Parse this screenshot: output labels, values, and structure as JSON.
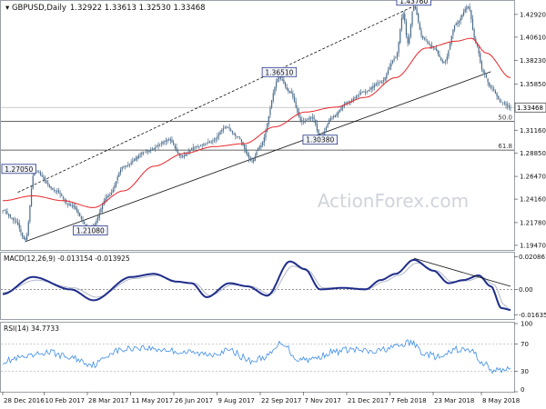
{
  "header": {
    "symbol": "GBPUSD,Daily",
    "ohlc": "1.32922 1.33613 1.32530 1.33468"
  },
  "watermark": "ActionForex.com",
  "colors": {
    "candle": "#4a6b8a",
    "sma": "#e8262a",
    "macd": "#1f2d8a",
    "signal": "#b0b8c8",
    "rsi": "#3f8ee8",
    "label_border": "#2a3a8a",
    "label_bg": "#f2f4fb",
    "level_line": "#333333"
  },
  "chart_data": [
    {
      "type": "candlestick",
      "title": "GBPUSD,Daily 1.32922 1.33613 1.32530 1.33468",
      "x_ticks": [
        "28 Dec 2016",
        "10 Feb 2017",
        "28 Mar 2017",
        "11 May 2017",
        "26 Jun 2017",
        "9 Aug 2017",
        "22 Sep 2017",
        "7 Nov 2017",
        "21 Dec 2017",
        "7 Feb 2018",
        "23 Mar 2018",
        "8 May 2018"
      ],
      "y_ticks": [
        1.4292,
        1.4061,
        1.3823,
        1.3585,
        1.3116,
        1.2885,
        1.2647,
        1.2416,
        1.2178,
        1.1947
      ],
      "ylim": [
        1.19,
        1.442
      ],
      "current_price": 1.33468,
      "annotations": [
        {
          "label": "1.43760",
          "value": 1.4376,
          "date_index": 272
        },
        {
          "label": "1.36510",
          "value": 1.3651,
          "date_index": 183
        },
        {
          "label": "1.27050",
          "value": 1.2705,
          "date_index": 21
        },
        {
          "label": "1.21080",
          "value": 1.2108,
          "date_index": 58
        },
        {
          "label": "1.30380",
          "value": 1.3038,
          "date_index": 210
        }
      ],
      "fib_levels": [
        {
          "label": "50.0",
          "value": 1.3205
        },
        {
          "label": "61.8",
          "value": 1.2914
        }
      ],
      "trend_lines": [
        {
          "style": "dashed",
          "from": [
            10,
            1.2485
          ],
          "to": [
            272,
            1.4376
          ]
        },
        {
          "style": "solid",
          "from": [
            15,
            1.1985
          ],
          "to": [
            323,
            1.371
          ]
        }
      ],
      "series_key_prices": [
        [
          0,
          1.23
        ],
        [
          8,
          1.22
        ],
        [
          15,
          1.2
        ],
        [
          21,
          1.2705
        ],
        [
          35,
          1.25
        ],
        [
          45,
          1.235
        ],
        [
          58,
          1.2108
        ],
        [
          70,
          1.245
        ],
        [
          80,
          1.275
        ],
        [
          95,
          1.29
        ],
        [
          110,
          1.302
        ],
        [
          118,
          1.285
        ],
        [
          128,
          1.295
        ],
        [
          138,
          1.3
        ],
        [
          148,
          1.315
        ],
        [
          155,
          1.305
        ],
        [
          165,
          1.28
        ],
        [
          170,
          1.295
        ],
        [
          183,
          1.3651
        ],
        [
          190,
          1.35
        ],
        [
          198,
          1.32
        ],
        [
          205,
          1.325
        ],
        [
          210,
          1.3038
        ],
        [
          218,
          1.325
        ],
        [
          228,
          1.34
        ],
        [
          238,
          1.35
        ],
        [
          250,
          1.36
        ],
        [
          260,
          1.385
        ],
        [
          265,
          1.43
        ],
        [
          268,
          1.4
        ],
        [
          272,
          1.4376
        ],
        [
          278,
          1.405
        ],
        [
          285,
          1.395
        ],
        [
          292,
          1.38
        ],
        [
          300,
          1.42
        ],
        [
          308,
          1.4376
        ],
        [
          313,
          1.4
        ],
        [
          318,
          1.37
        ],
        [
          323,
          1.355
        ],
        [
          330,
          1.34
        ],
        [
          336,
          1.3347
        ]
      ],
      "sma_key_prices": [
        [
          0,
          1.24
        ],
        [
          20,
          1.245
        ],
        [
          40,
          1.24
        ],
        [
          60,
          1.233
        ],
        [
          80,
          1.25
        ],
        [
          100,
          1.275
        ],
        [
          120,
          1.288
        ],
        [
          140,
          1.295
        ],
        [
          160,
          1.298
        ],
        [
          180,
          1.315
        ],
        [
          200,
          1.33
        ],
        [
          220,
          1.335
        ],
        [
          240,
          1.345
        ],
        [
          260,
          1.365
        ],
        [
          280,
          1.395
        ],
        [
          300,
          1.402
        ],
        [
          310,
          1.405
        ],
        [
          320,
          1.39
        ],
        [
          336,
          1.365
        ]
      ]
    },
    {
      "type": "line",
      "title": "MACD(12,26,9) -0.013154 -0.013925",
      "y_ticks": [
        0.020861,
        0.0,
        -0.016357
      ],
      "ylim": [
        -0.019,
        0.023
      ],
      "series": [
        {
          "key": "macd",
          "key_values": [
            [
              0,
              -0.003
            ],
            [
              20,
              0.008
            ],
            [
              45,
              0.0
            ],
            [
              60,
              -0.007
            ],
            [
              85,
              0.008
            ],
            [
              100,
              0.01
            ],
            [
              115,
              0.005
            ],
            [
              125,
              0.004
            ],
            [
              135,
              -0.005
            ],
            [
              150,
              0.004
            ],
            [
              162,
              0.002
            ],
            [
              175,
              -0.004
            ],
            [
              190,
              0.018
            ],
            [
              200,
              0.013
            ],
            [
              210,
              0.0
            ],
            [
              225,
              0.001
            ],
            [
              240,
              0.0
            ],
            [
              250,
              0.006
            ],
            [
              260,
              0.01
            ],
            [
              272,
              0.019
            ],
            [
              285,
              0.012
            ],
            [
              295,
              0.004
            ],
            [
              305,
              0.006
            ],
            [
              315,
              0.009
            ],
            [
              323,
              0.002
            ],
            [
              330,
              -0.012
            ],
            [
              336,
              -0.0131
            ]
          ]
        },
        {
          "key": "signal",
          "key_values": [
            [
              0,
              -0.002
            ],
            [
              22,
              0.006
            ],
            [
              47,
              0.001
            ],
            [
              62,
              -0.005
            ],
            [
              87,
              0.007
            ],
            [
              102,
              0.009
            ],
            [
              117,
              0.005
            ],
            [
              127,
              0.004
            ],
            [
              137,
              -0.004
            ],
            [
              152,
              0.003
            ],
            [
              164,
              0.002
            ],
            [
              177,
              -0.003
            ],
            [
              192,
              0.015
            ],
            [
              202,
              0.012
            ],
            [
              212,
              0.001
            ],
            [
              227,
              0.001
            ],
            [
              242,
              0.0005
            ],
            [
              252,
              0.005
            ],
            [
              262,
              0.009
            ],
            [
              274,
              0.017
            ],
            [
              287,
              0.012
            ],
            [
              297,
              0.005
            ],
            [
              307,
              0.0055
            ],
            [
              317,
              0.008
            ],
            [
              325,
              0.003
            ],
            [
              332,
              -0.01
            ],
            [
              336,
              -0.0139
            ]
          ]
        }
      ],
      "trend_line": {
        "from": [
          272,
          0.02
        ],
        "to": [
          336,
          0.002
        ]
      }
    },
    {
      "type": "line",
      "title": "RSI(14) 34.7733",
      "y_ticks": [
        100,
        70,
        30,
        0
      ],
      "ylim": [
        0,
        100
      ],
      "series": [
        {
          "key": "rsi",
          "key_values": [
            [
              0,
              45
            ],
            [
              15,
              50
            ],
            [
              30,
              58
            ],
            [
              45,
              50
            ],
            [
              60,
              40
            ],
            [
              75,
              60
            ],
            [
              90,
              65
            ],
            [
              105,
              62
            ],
            [
              120,
              58
            ],
            [
              135,
              55
            ],
            [
              150,
              60
            ],
            [
              165,
              45
            ],
            [
              175,
              52
            ],
            [
              185,
              72
            ],
            [
              195,
              48
            ],
            [
              205,
              48
            ],
            [
              218,
              58
            ],
            [
              230,
              62
            ],
            [
              245,
              58
            ],
            [
              258,
              65
            ],
            [
              270,
              72
            ],
            [
              280,
              55
            ],
            [
              290,
              50
            ],
            [
              300,
              62
            ],
            [
              310,
              60
            ],
            [
              318,
              42
            ],
            [
              325,
              30
            ],
            [
              330,
              32
            ],
            [
              336,
              34.77
            ]
          ]
        }
      ]
    }
  ]
}
